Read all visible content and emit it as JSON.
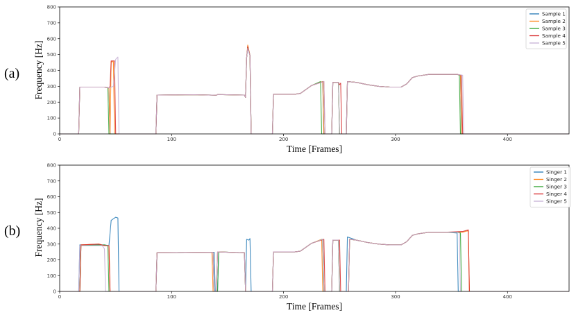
{
  "panels": [
    {
      "label": "(a)"
    },
    {
      "label": "(b)"
    }
  ],
  "chart_data": [
    {
      "type": "line",
      "title": "",
      "xlabel": "Time [Frames]",
      "ylabel": "Frequency [Hz]",
      "xlim": [
        0,
        455
      ],
      "ylim": [
        0,
        800
      ],
      "xticks": [
        0,
        100,
        200,
        300,
        400
      ],
      "yticks": [
        0,
        100,
        200,
        300,
        400,
        500,
        600,
        700,
        800
      ],
      "grid": false,
      "legend_position": "top-right",
      "series": [
        {
          "name": "Sample 1",
          "color": "#1f77b4",
          "x": [
            0,
            17,
            18,
            40,
            44,
            45,
            46,
            86,
            87,
            120,
            140,
            141,
            165,
            166,
            167,
            168,
            170,
            171,
            190,
            191,
            210,
            215,
            225,
            235,
            236,
            237,
            243,
            244,
            249,
            250,
            251,
            252,
            256,
            257,
            265,
            275,
            285,
            295,
            305,
            310,
            315,
            320,
            330,
            345,
            355,
            358,
            359,
            455
          ],
          "y": [
            0,
            0,
            295,
            295,
            290,
            0,
            0,
            0,
            245,
            247,
            244,
            248,
            245,
            230,
            480,
            545,
            495,
            0,
            0,
            250,
            250,
            255,
            305,
            330,
            0,
            0,
            0,
            325,
            325,
            0,
            0,
            0,
            0,
            330,
            325,
            310,
            300,
            295,
            295,
            315,
            355,
            365,
            375,
            375,
            375,
            370,
            0,
            0
          ]
        },
        {
          "name": "Sample 2",
          "color": "#ff7f0e",
          "x": [
            0,
            17,
            18,
            40,
            44,
            45,
            46,
            48,
            49,
            86,
            87,
            120,
            140,
            141,
            165,
            166,
            167,
            168,
            170,
            171,
            190,
            191,
            210,
            215,
            225,
            235,
            236,
            237,
            243,
            244,
            249,
            250,
            251,
            252,
            256,
            257,
            265,
            275,
            285,
            295,
            305,
            310,
            315,
            320,
            330,
            345,
            355,
            358,
            359,
            455
          ],
          "y": [
            0,
            0,
            295,
            295,
            290,
            0,
            455,
            455,
            0,
            0,
            245,
            247,
            244,
            248,
            245,
            230,
            480,
            560,
            495,
            0,
            0,
            250,
            250,
            255,
            305,
            330,
            0,
            0,
            0,
            325,
            325,
            0,
            0,
            0,
            0,
            330,
            325,
            310,
            300,
            295,
            295,
            315,
            355,
            365,
            375,
            375,
            375,
            370,
            0,
            0
          ]
        },
        {
          "name": "Sample 3",
          "color": "#2ca02c",
          "x": [
            0,
            17,
            18,
            40,
            43,
            44,
            45,
            86,
            87,
            120,
            140,
            141,
            165,
            166,
            167,
            168,
            170,
            171,
            190,
            191,
            210,
            215,
            225,
            233,
            234,
            235,
            243,
            244,
            249,
            250,
            251,
            252,
            256,
            257,
            265,
            275,
            285,
            295,
            305,
            310,
            315,
            320,
            330,
            345,
            355,
            357,
            358,
            455
          ],
          "y": [
            0,
            0,
            295,
            295,
            290,
            0,
            0,
            0,
            245,
            247,
            244,
            248,
            245,
            230,
            480,
            545,
            495,
            0,
            0,
            250,
            250,
            255,
            305,
            330,
            0,
            0,
            0,
            325,
            325,
            0,
            0,
            0,
            0,
            330,
            325,
            310,
            300,
            295,
            295,
            315,
            355,
            365,
            375,
            375,
            375,
            370,
            0,
            0
          ]
        },
        {
          "name": "Sample 4",
          "color": "#d62728",
          "x": [
            0,
            17,
            18,
            40,
            44,
            45,
            46,
            49,
            50,
            86,
            87,
            120,
            140,
            141,
            165,
            166,
            167,
            168,
            170,
            171,
            190,
            191,
            210,
            215,
            225,
            236,
            237,
            238,
            243,
            244,
            249,
            250,
            251,
            252,
            256,
            257,
            265,
            275,
            285,
            295,
            305,
            310,
            315,
            320,
            330,
            345,
            355,
            359,
            360,
            455
          ],
          "y": [
            0,
            0,
            295,
            295,
            290,
            300,
            460,
            460,
            0,
            0,
            245,
            247,
            244,
            248,
            245,
            230,
            480,
            550,
            495,
            0,
            0,
            250,
            250,
            255,
            305,
            330,
            0,
            0,
            0,
            325,
            325,
            310,
            320,
            0,
            0,
            330,
            325,
            310,
            300,
            295,
            295,
            315,
            355,
            365,
            375,
            375,
            375,
            370,
            0,
            0
          ]
        },
        {
          "name": "Sample 5",
          "color": "#c5b0d5",
          "x": [
            0,
            17,
            18,
            40,
            44,
            48,
            50,
            52,
            53,
            86,
            87,
            120,
            140,
            141,
            165,
            166,
            167,
            168,
            170,
            171,
            190,
            191,
            210,
            215,
            225,
            236,
            237,
            238,
            243,
            244,
            249,
            250,
            251,
            252,
            256,
            257,
            265,
            275,
            285,
            295,
            305,
            310,
            315,
            320,
            330,
            345,
            355,
            360,
            361,
            455
          ],
          "y": [
            0,
            0,
            295,
            295,
            290,
            300,
            470,
            485,
            0,
            0,
            245,
            247,
            244,
            248,
            245,
            230,
            480,
            540,
            495,
            0,
            0,
            250,
            250,
            255,
            305,
            330,
            0,
            0,
            0,
            325,
            325,
            0,
            0,
            0,
            0,
            330,
            325,
            310,
            300,
            295,
            295,
            315,
            355,
            365,
            375,
            375,
            375,
            370,
            0,
            0
          ]
        }
      ]
    },
    {
      "type": "line",
      "title": "",
      "xlabel": "Time [Frames]",
      "ylabel": "Frequency [Hz]",
      "xlim": [
        0,
        455
      ],
      "ylim": [
        0,
        800
      ],
      "xticks": [
        0,
        100,
        200,
        300,
        400
      ],
      "yticks": [
        0,
        100,
        200,
        300,
        400,
        500,
        600,
        700,
        800
      ],
      "grid": false,
      "legend_position": "top-right",
      "series": [
        {
          "name": "Singer 1",
          "color": "#1f77b4",
          "x": [
            0,
            17,
            18,
            40,
            44,
            46,
            50,
            52,
            53,
            86,
            87,
            120,
            138,
            139,
            141,
            142,
            165,
            166,
            167,
            169,
            170,
            171,
            190,
            191,
            210,
            215,
            225,
            235,
            236,
            237,
            243,
            244,
            249,
            250,
            256,
            257,
            265,
            275,
            285,
            295,
            305,
            310,
            315,
            320,
            330,
            345,
            355,
            356,
            357,
            455
          ],
          "y": [
            0,
            0,
            295,
            295,
            290,
            450,
            470,
            465,
            0,
            0,
            245,
            247,
            248,
            0,
            0,
            250,
            245,
            0,
            330,
            325,
            335,
            0,
            0,
            250,
            250,
            255,
            305,
            330,
            0,
            0,
            0,
            325,
            325,
            0,
            0,
            345,
            325,
            310,
            300,
            295,
            295,
            315,
            355,
            365,
            375,
            375,
            370,
            0,
            0,
            0
          ]
        },
        {
          "name": "Singer 2",
          "color": "#ff7f0e",
          "x": [
            0,
            18,
            19,
            35,
            40,
            44,
            45,
            86,
            87,
            120,
            136,
            137,
            140,
            141,
            165,
            166,
            190,
            191,
            210,
            215,
            225,
            234,
            235,
            243,
            244,
            249,
            250,
            258,
            259,
            265,
            275,
            285,
            295,
            305,
            310,
            315,
            320,
            330,
            345,
            360,
            365,
            366,
            455
          ],
          "y": [
            0,
            0,
            295,
            300,
            290,
            290,
            0,
            0,
            245,
            247,
            248,
            0,
            0,
            250,
            245,
            0,
            0,
            250,
            250,
            255,
            305,
            330,
            0,
            0,
            325,
            325,
            0,
            0,
            330,
            325,
            310,
            300,
            295,
            295,
            315,
            355,
            365,
            375,
            375,
            375,
            385,
            0,
            0
          ]
        },
        {
          "name": "Singer 3",
          "color": "#2ca02c",
          "x": [
            0,
            18,
            19,
            40,
            43,
            44,
            86,
            87,
            120,
            137,
            138,
            141,
            142,
            165,
            166,
            190,
            191,
            210,
            215,
            225,
            235,
            236,
            243,
            244,
            249,
            250,
            258,
            259,
            265,
            275,
            285,
            295,
            305,
            310,
            315,
            320,
            330,
            345,
            355,
            358,
            359,
            455
          ],
          "y": [
            0,
            0,
            290,
            295,
            290,
            0,
            0,
            245,
            247,
            248,
            0,
            0,
            250,
            245,
            0,
            0,
            250,
            250,
            255,
            305,
            330,
            0,
            0,
            325,
            325,
            0,
            0,
            330,
            325,
            310,
            300,
            295,
            295,
            315,
            355,
            365,
            375,
            375,
            375,
            370,
            0,
            0
          ]
        },
        {
          "name": "Singer 4",
          "color": "#d62728",
          "x": [
            0,
            18,
            19,
            35,
            40,
            44,
            45,
            86,
            87,
            120,
            137,
            138,
            140,
            141,
            165,
            166,
            190,
            191,
            210,
            215,
            225,
            236,
            237,
            243,
            244,
            250,
            251,
            258,
            259,
            265,
            275,
            285,
            295,
            305,
            310,
            315,
            320,
            330,
            345,
            360,
            365,
            366,
            455
          ],
          "y": [
            0,
            0,
            295,
            300,
            290,
            290,
            0,
            0,
            245,
            247,
            248,
            0,
            0,
            250,
            245,
            0,
            0,
            250,
            250,
            255,
            305,
            330,
            0,
            0,
            325,
            325,
            0,
            0,
            330,
            325,
            310,
            300,
            295,
            295,
            315,
            355,
            365,
            375,
            375,
            380,
            390,
            0,
            0
          ]
        },
        {
          "name": "Singer 5",
          "color": "#c5b0d5",
          "x": [
            0,
            17,
            18,
            38,
            40,
            41,
            86,
            87,
            120,
            137,
            138,
            140,
            141,
            165,
            166,
            190,
            191,
            210,
            215,
            225,
            235,
            236,
            243,
            244,
            249,
            250,
            258,
            259,
            265,
            275,
            285,
            295,
            305,
            310,
            315,
            320,
            330,
            345,
            355,
            357,
            358,
            455
          ],
          "y": [
            0,
            0,
            290,
            290,
            270,
            0,
            0,
            245,
            247,
            248,
            0,
            0,
            250,
            245,
            0,
            0,
            250,
            250,
            255,
            305,
            330,
            0,
            0,
            325,
            325,
            0,
            0,
            330,
            325,
            310,
            300,
            295,
            295,
            315,
            355,
            365,
            375,
            375,
            375,
            370,
            0,
            0
          ]
        }
      ]
    }
  ]
}
